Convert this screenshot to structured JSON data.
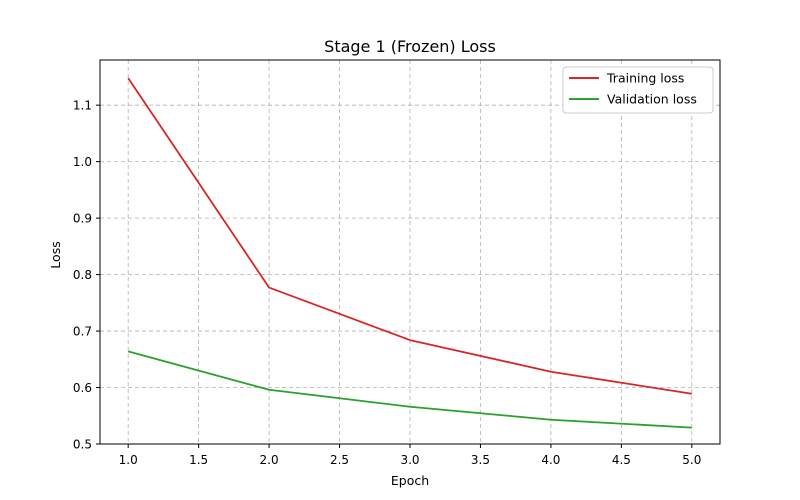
{
  "chart_data": {
    "type": "line",
    "title": "Stage 1 (Frozen) Loss",
    "xlabel": "Epoch",
    "ylabel": "Loss",
    "x": [
      1.0,
      2.0,
      3.0,
      4.0,
      5.0
    ],
    "xlim": [
      0.8,
      5.2
    ],
    "ylim": [
      0.5,
      1.18
    ],
    "xticks": [
      1.0,
      1.5,
      2.0,
      2.5,
      3.0,
      3.5,
      4.0,
      4.5,
      5.0
    ],
    "xtick_labels": [
      "1.0",
      "1.5",
      "2.0",
      "2.5",
      "3.0",
      "3.5",
      "4.0",
      "4.5",
      "5.0"
    ],
    "yticks": [
      0.5,
      0.6,
      0.7,
      0.8,
      0.9,
      1.0,
      1.1
    ],
    "ytick_labels": [
      "0.5",
      "0.6",
      "0.7",
      "0.8",
      "0.9",
      "1.0",
      "1.1"
    ],
    "grid": true,
    "legend_position": "top-right",
    "series": [
      {
        "name": "Training loss",
        "color": "#d62728",
        "values": [
          1.148,
          0.777,
          0.684,
          0.628,
          0.589
        ]
      },
      {
        "name": "Validation loss",
        "color": "#2ca02c",
        "values": [
          0.664,
          0.596,
          0.566,
          0.543,
          0.529
        ]
      }
    ]
  }
}
